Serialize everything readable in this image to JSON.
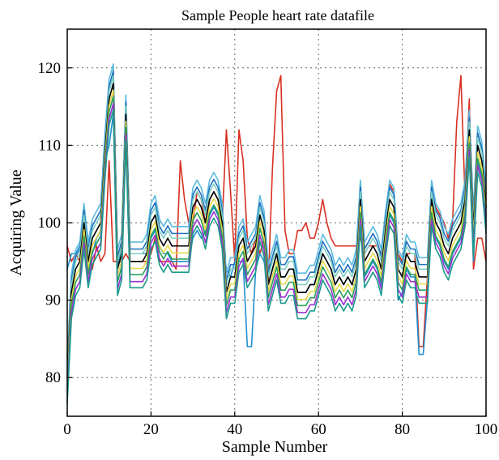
{
  "chart_data": {
    "type": "line",
    "title": "Sample People heart rate datafile",
    "xlabel": "Sample Number",
    "ylabel": "Acquiring Value",
    "xlim": [
      0,
      100
    ],
    "ylim": [
      75,
      125
    ],
    "xticks": [
      0,
      20,
      40,
      60,
      80,
      100
    ],
    "yticks": [
      80,
      90,
      100,
      110,
      120
    ],
    "grid": true,
    "legend": "none",
    "base": [
      80,
      91,
      94,
      95,
      100,
      95,
      98,
      99,
      100,
      109,
      116,
      118,
      94,
      96,
      114,
      95,
      95,
      95,
      95,
      96,
      100,
      101,
      98,
      97,
      98,
      97,
      97,
      97,
      97,
      97,
      102,
      103,
      102,
      100,
      103,
      104,
      103,
      100,
      91,
      93,
      93,
      97,
      98,
      95,
      96,
      97,
      101,
      99,
      92,
      94,
      96,
      93,
      93,
      94,
      94,
      91,
      91,
      91,
      92,
      92,
      94,
      96,
      95,
      94,
      92,
      93,
      92,
      93,
      92,
      94,
      103,
      95,
      96,
      97,
      96,
      94,
      99,
      103,
      102,
      94,
      93,
      96,
      95,
      95,
      93,
      93,
      93,
      103,
      100,
      99,
      97,
      96,
      98,
      99,
      100,
      103,
      112,
      99,
      110,
      108,
      102
    ],
    "series": [
      {
        "color": "#5bbbe0",
        "offset": 2.5
      },
      {
        "color": "#1f6fc0",
        "offset": 1.6
      },
      {
        "color": "#7fd0c0",
        "offset": 1.0
      },
      {
        "color": "#000000",
        "offset": 0.0
      },
      {
        "color": "#e8d84a",
        "offset": -0.9
      },
      {
        "color": "#2aa05a",
        "offset": -1.7
      },
      {
        "color": "#9b30d0",
        "offset": -2.6
      },
      {
        "color": "#1a9a8a",
        "offset": -3.4
      }
    ],
    "red_series": {
      "color": "#d83020",
      "values": [
        97,
        95,
        96,
        95,
        97,
        94,
        94,
        97,
        95,
        96,
        108,
        95,
        95,
        95,
        96,
        95,
        95,
        95,
        95,
        95,
        96,
        98,
        95,
        95,
        95,
        95,
        94,
        108,
        103,
        100,
        100,
        104,
        103,
        100,
        103,
        104,
        103,
        100,
        112,
        104,
        95,
        112,
        108,
        98,
        96,
        98,
        96,
        98,
        92,
        107,
        117,
        119,
        99,
        96,
        96,
        99,
        99,
        100,
        98,
        98,
        100,
        103,
        100,
        98,
        97,
        97,
        97,
        97,
        97,
        97,
        98,
        96,
        97,
        97,
        97,
        96,
        99,
        105,
        104,
        96,
        95,
        96,
        96,
        96,
        84,
        84,
        93,
        104,
        102,
        101,
        100,
        98,
        100,
        113,
        119,
        103,
        116,
        94,
        98,
        98,
        95
      ]
    },
    "blue_series": {
      "color": "#1f90d0",
      "values": [
        94,
        96,
        96,
        97,
        98,
        95,
        96,
        98,
        99,
        108,
        110,
        114,
        94,
        97,
        110,
        96,
        96,
        96,
        96,
        96,
        98,
        99,
        97,
        96,
        96,
        95,
        95,
        95,
        95,
        95,
        98,
        99,
        98,
        99,
        101,
        102,
        101,
        98,
        94,
        93,
        95,
        95,
        95,
        84,
        84,
        94,
        96,
        95,
        92,
        94,
        96,
        93,
        93,
        94,
        94,
        91,
        91,
        91,
        92,
        92,
        94,
        96,
        95,
        94,
        92,
        93,
        92,
        93,
        92,
        92,
        101,
        93,
        94,
        95,
        94,
        92,
        97,
        101,
        100,
        90,
        91,
        94,
        93,
        93,
        83,
        83,
        90,
        100,
        98,
        97,
        95,
        94,
        96,
        97,
        98,
        101,
        109,
        95,
        108,
        106,
        100
      ]
    }
  }
}
